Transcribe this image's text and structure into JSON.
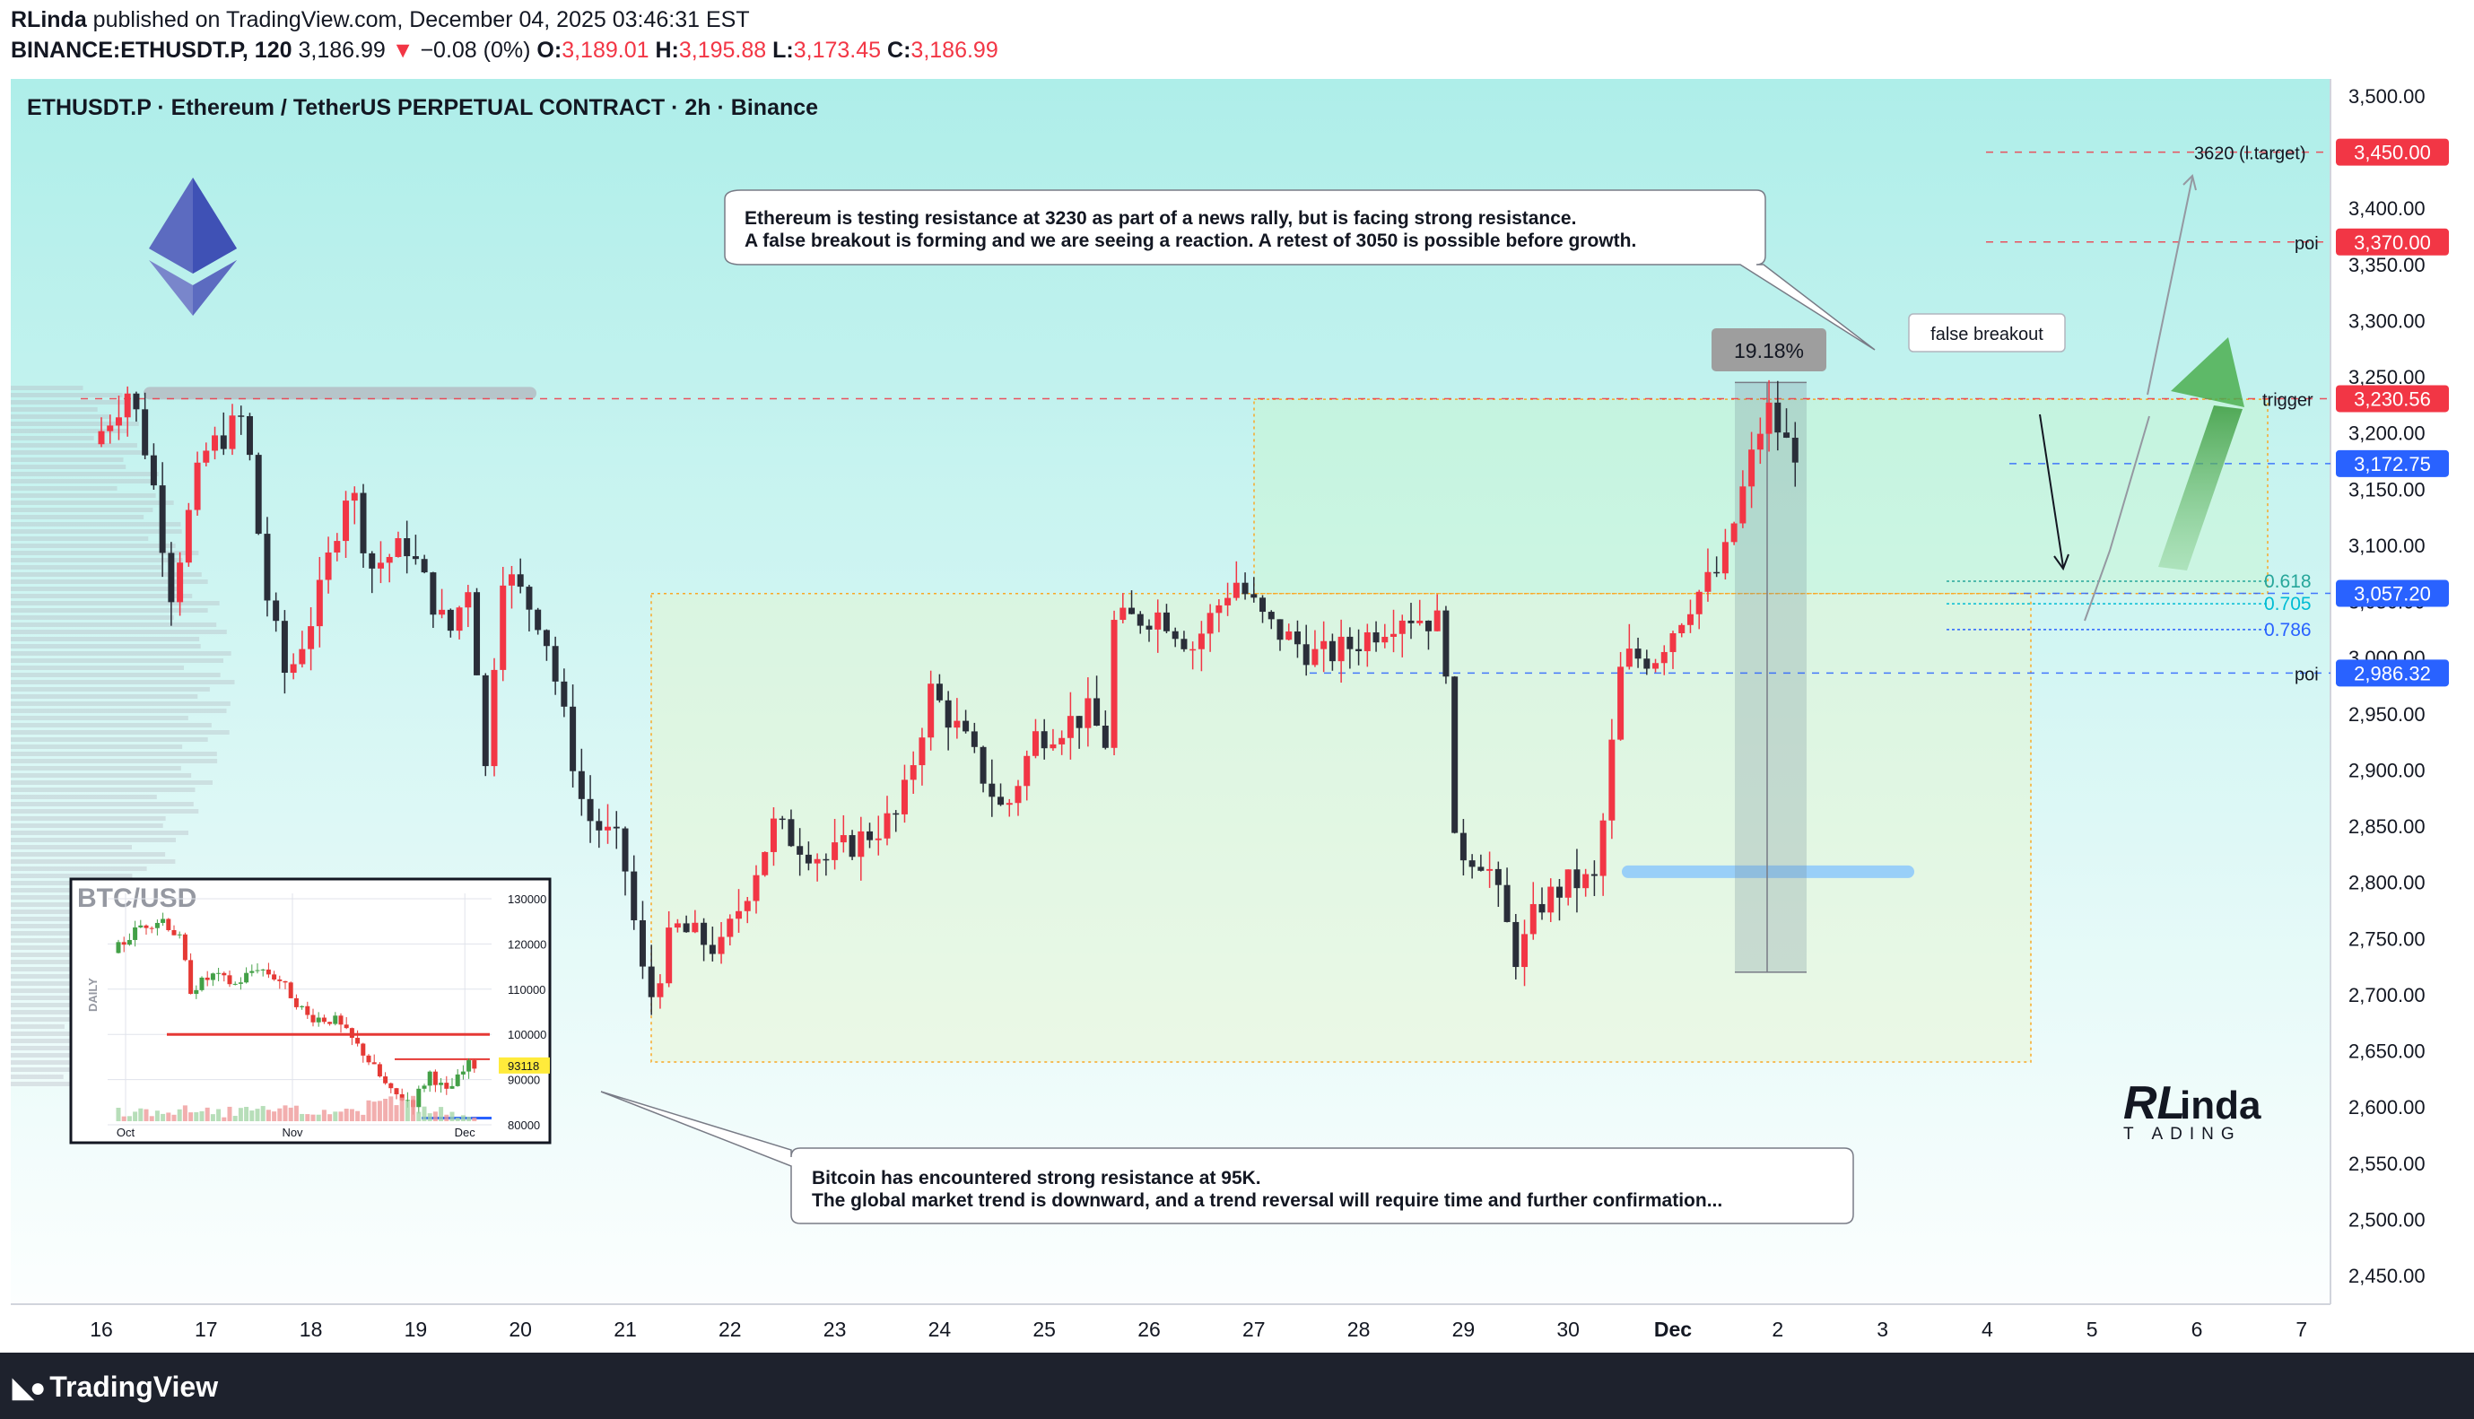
{
  "header": {
    "author": "RLinda",
    "published": "published on TradingView.com, December 04, 2025 03:46:31 EST",
    "symbol": "BINANCE:ETHUSDT.P, 120",
    "last": "3,186.99",
    "arrow": "▼",
    "change": "−0.08 (0%)",
    "o_label": "O:",
    "o": "3,189.01",
    "h_label": "H:",
    "h": "3,195.88",
    "l_label": "L:",
    "l": "3,173.45",
    "c_label": "C:",
    "c": "3,186.99"
  },
  "footer": {
    "brand": "TradingView"
  },
  "colors": {
    "up": "#f23645",
    "down": "#2a2e39",
    "bg_top": "#aeeee9",
    "bg_bottom": "#ffffff",
    "accent_red": "#f23645",
    "accent_blue": "#2962ff"
  },
  "chart_data": {
    "type": "candlestick",
    "title": "ETHUSDT.P · Ethereum / TetherUS PERPETUAL CONTRACT · 2h · Binance",
    "x_ticks": [
      "16",
      "17",
      "18",
      "19",
      "20",
      "21",
      "22",
      "23",
      "24",
      "25",
      "26",
      "27",
      "28",
      "29",
      "30",
      "Dec",
      "2",
      "3",
      "4",
      "5",
      "6",
      "7"
    ],
    "y_ticks": [
      "3,500.00",
      "3,450.00",
      "3,400.00",
      "3,350.00",
      "3,300.00",
      "3,250.00",
      "3,200.00",
      "3,150.00",
      "3,100.00",
      "3,050.00",
      "3,000.00",
      "2,950.00",
      "2,900.00",
      "2,850.00",
      "2,800.00",
      "2,750.00",
      "2,700.00",
      "2,650.00",
      "2,600.00",
      "2,550.00",
      "2,500.00",
      "2,450.00"
    ],
    "ylim": [
      2420,
      3520
    ],
    "price_key_points": [
      {
        "d": 0,
        "p": 3190
      },
      {
        "d": 0.35,
        "p": 3240
      },
      {
        "d": 0.55,
        "p": 3170
      },
      {
        "d": 0.75,
        "p": 3060
      },
      {
        "d": 1.05,
        "p": 3180
      },
      {
        "d": 1.45,
        "p": 3215
      },
      {
        "d": 1.65,
        "p": 3060
      },
      {
        "d": 1.85,
        "p": 2980
      },
      {
        "d": 2.15,
        "p": 3050
      },
      {
        "d": 2.45,
        "p": 3160
      },
      {
        "d": 2.65,
        "p": 3080
      },
      {
        "d": 3.0,
        "p": 3100
      },
      {
        "d": 3.4,
        "p": 3020
      },
      {
        "d": 3.6,
        "p": 3070
      },
      {
        "d": 3.75,
        "p": 2900
      },
      {
        "d": 3.9,
        "p": 3080
      },
      {
        "d": 4.3,
        "p": 3030
      },
      {
        "d": 4.7,
        "p": 2860
      },
      {
        "d": 5.05,
        "p": 2830
      },
      {
        "d": 5.3,
        "p": 2690
      },
      {
        "d": 5.55,
        "p": 2760
      },
      {
        "d": 6.0,
        "p": 2740
      },
      {
        "d": 6.5,
        "p": 2850
      },
      {
        "d": 7.0,
        "p": 2820
      },
      {
        "d": 7.7,
        "p": 2860
      },
      {
        "d": 8.0,
        "p": 2970
      },
      {
        "d": 8.3,
        "p": 2930
      },
      {
        "d": 8.7,
        "p": 2860
      },
      {
        "d": 9.0,
        "p": 2930
      },
      {
        "d": 9.5,
        "p": 2950
      },
      {
        "d": 9.7,
        "p": 2920
      },
      {
        "d": 9.75,
        "p": 3030
      },
      {
        "d": 10.2,
        "p": 3040
      },
      {
        "d": 10.5,
        "p": 3010
      },
      {
        "d": 10.9,
        "p": 3070
      },
      {
        "d": 11.2,
        "p": 3030
      },
      {
        "d": 11.7,
        "p": 3000
      },
      {
        "d": 12.0,
        "p": 3010
      },
      {
        "d": 12.5,
        "p": 3040
      },
      {
        "d": 12.9,
        "p": 3030
      },
      {
        "d": 13.0,
        "p": 2830
      },
      {
        "d": 13.3,
        "p": 2820
      },
      {
        "d": 13.6,
        "p": 2730
      },
      {
        "d": 13.8,
        "p": 2780
      },
      {
        "d": 14.1,
        "p": 2800
      },
      {
        "d": 14.35,
        "p": 2800
      },
      {
        "d": 14.6,
        "p": 3000
      },
      {
        "d": 14.9,
        "p": 3000
      },
      {
        "d": 15.25,
        "p": 3050
      },
      {
        "d": 15.55,
        "p": 3080
      },
      {
        "d": 15.9,
        "p": 3200
      },
      {
        "d": 16.0,
        "p": 3220
      },
      {
        "d": 16.1,
        "p": 3200
      },
      {
        "d": 16.2,
        "p": 3185
      }
    ],
    "levels": [
      {
        "label": "3,450.00",
        "value": 3450,
        "color": "#f23645",
        "tag": "3620 (l.target)"
      },
      {
        "label": "3,370.00",
        "value": 3370,
        "color": "#f23645",
        "tag": "poi"
      },
      {
        "label": "3,230.56",
        "value": 3230.56,
        "color": "#f23645",
        "tag": "trigger"
      },
      {
        "label": "3,172.75",
        "value": 3172.75,
        "color": "#2962ff",
        "tag": ""
      },
      {
        "label": "3,057.20",
        "value": 3057.2,
        "color": "#2962ff",
        "tag": ""
      },
      {
        "label": "2,986.32",
        "value": 2986.32,
        "color": "#2962ff",
        "tag": "poi"
      }
    ],
    "fib": [
      {
        "label": "0.618",
        "value": 3068,
        "color": "#26a69a"
      },
      {
        "label": "0.705",
        "value": 3048,
        "color": "#00bcd4"
      },
      {
        "label": "0.786",
        "value": 3025,
        "color": "#2962ff"
      }
    ],
    "measure": {
      "label": "19.18%",
      "from": 2720,
      "to": 3245
    },
    "notes": {
      "eth": [
        "Ethereum is testing resistance at 3230 as part of a news rally, but is facing strong resistance.",
        "A false breakout is forming and we are seeing a reaction. A retest of 3050 is possible before growth."
      ],
      "btc": [
        "Bitcoin has encountered strong resistance at 95K.",
        "The global market trend is downward, and a trend reversal will require time and further confirmation..."
      ],
      "false_breakout": "false breakout"
    },
    "inset": {
      "title": "BTC/USD",
      "side_label": "DAILY",
      "y_ticks": [
        "130000",
        "120000",
        "110000",
        "100000",
        "90000",
        "80000"
      ],
      "x_ticks": [
        "Oct",
        "Nov",
        "Dec"
      ],
      "last_label": "93118",
      "resistance": 100000,
      "price_key_points": [
        {
          "d": 0,
          "p": 118000
        },
        {
          "d": 5,
          "p": 124000
        },
        {
          "d": 9,
          "p": 125500
        },
        {
          "d": 12,
          "p": 121000
        },
        {
          "d": 14,
          "p": 110000
        },
        {
          "d": 18,
          "p": 113000
        },
        {
          "d": 22,
          "p": 111000
        },
        {
          "d": 26,
          "p": 115000
        },
        {
          "d": 30,
          "p": 112000
        },
        {
          "d": 35,
          "p": 104000
        },
        {
          "d": 40,
          "p": 103000
        },
        {
          "d": 45,
          "p": 96000
        },
        {
          "d": 50,
          "p": 87000
        },
        {
          "d": 54,
          "p": 85000
        },
        {
          "d": 57,
          "p": 91500
        },
        {
          "d": 60,
          "p": 87000
        },
        {
          "d": 64,
          "p": 93118
        }
      ]
    },
    "brand_logo": "RLinda TRADING"
  }
}
